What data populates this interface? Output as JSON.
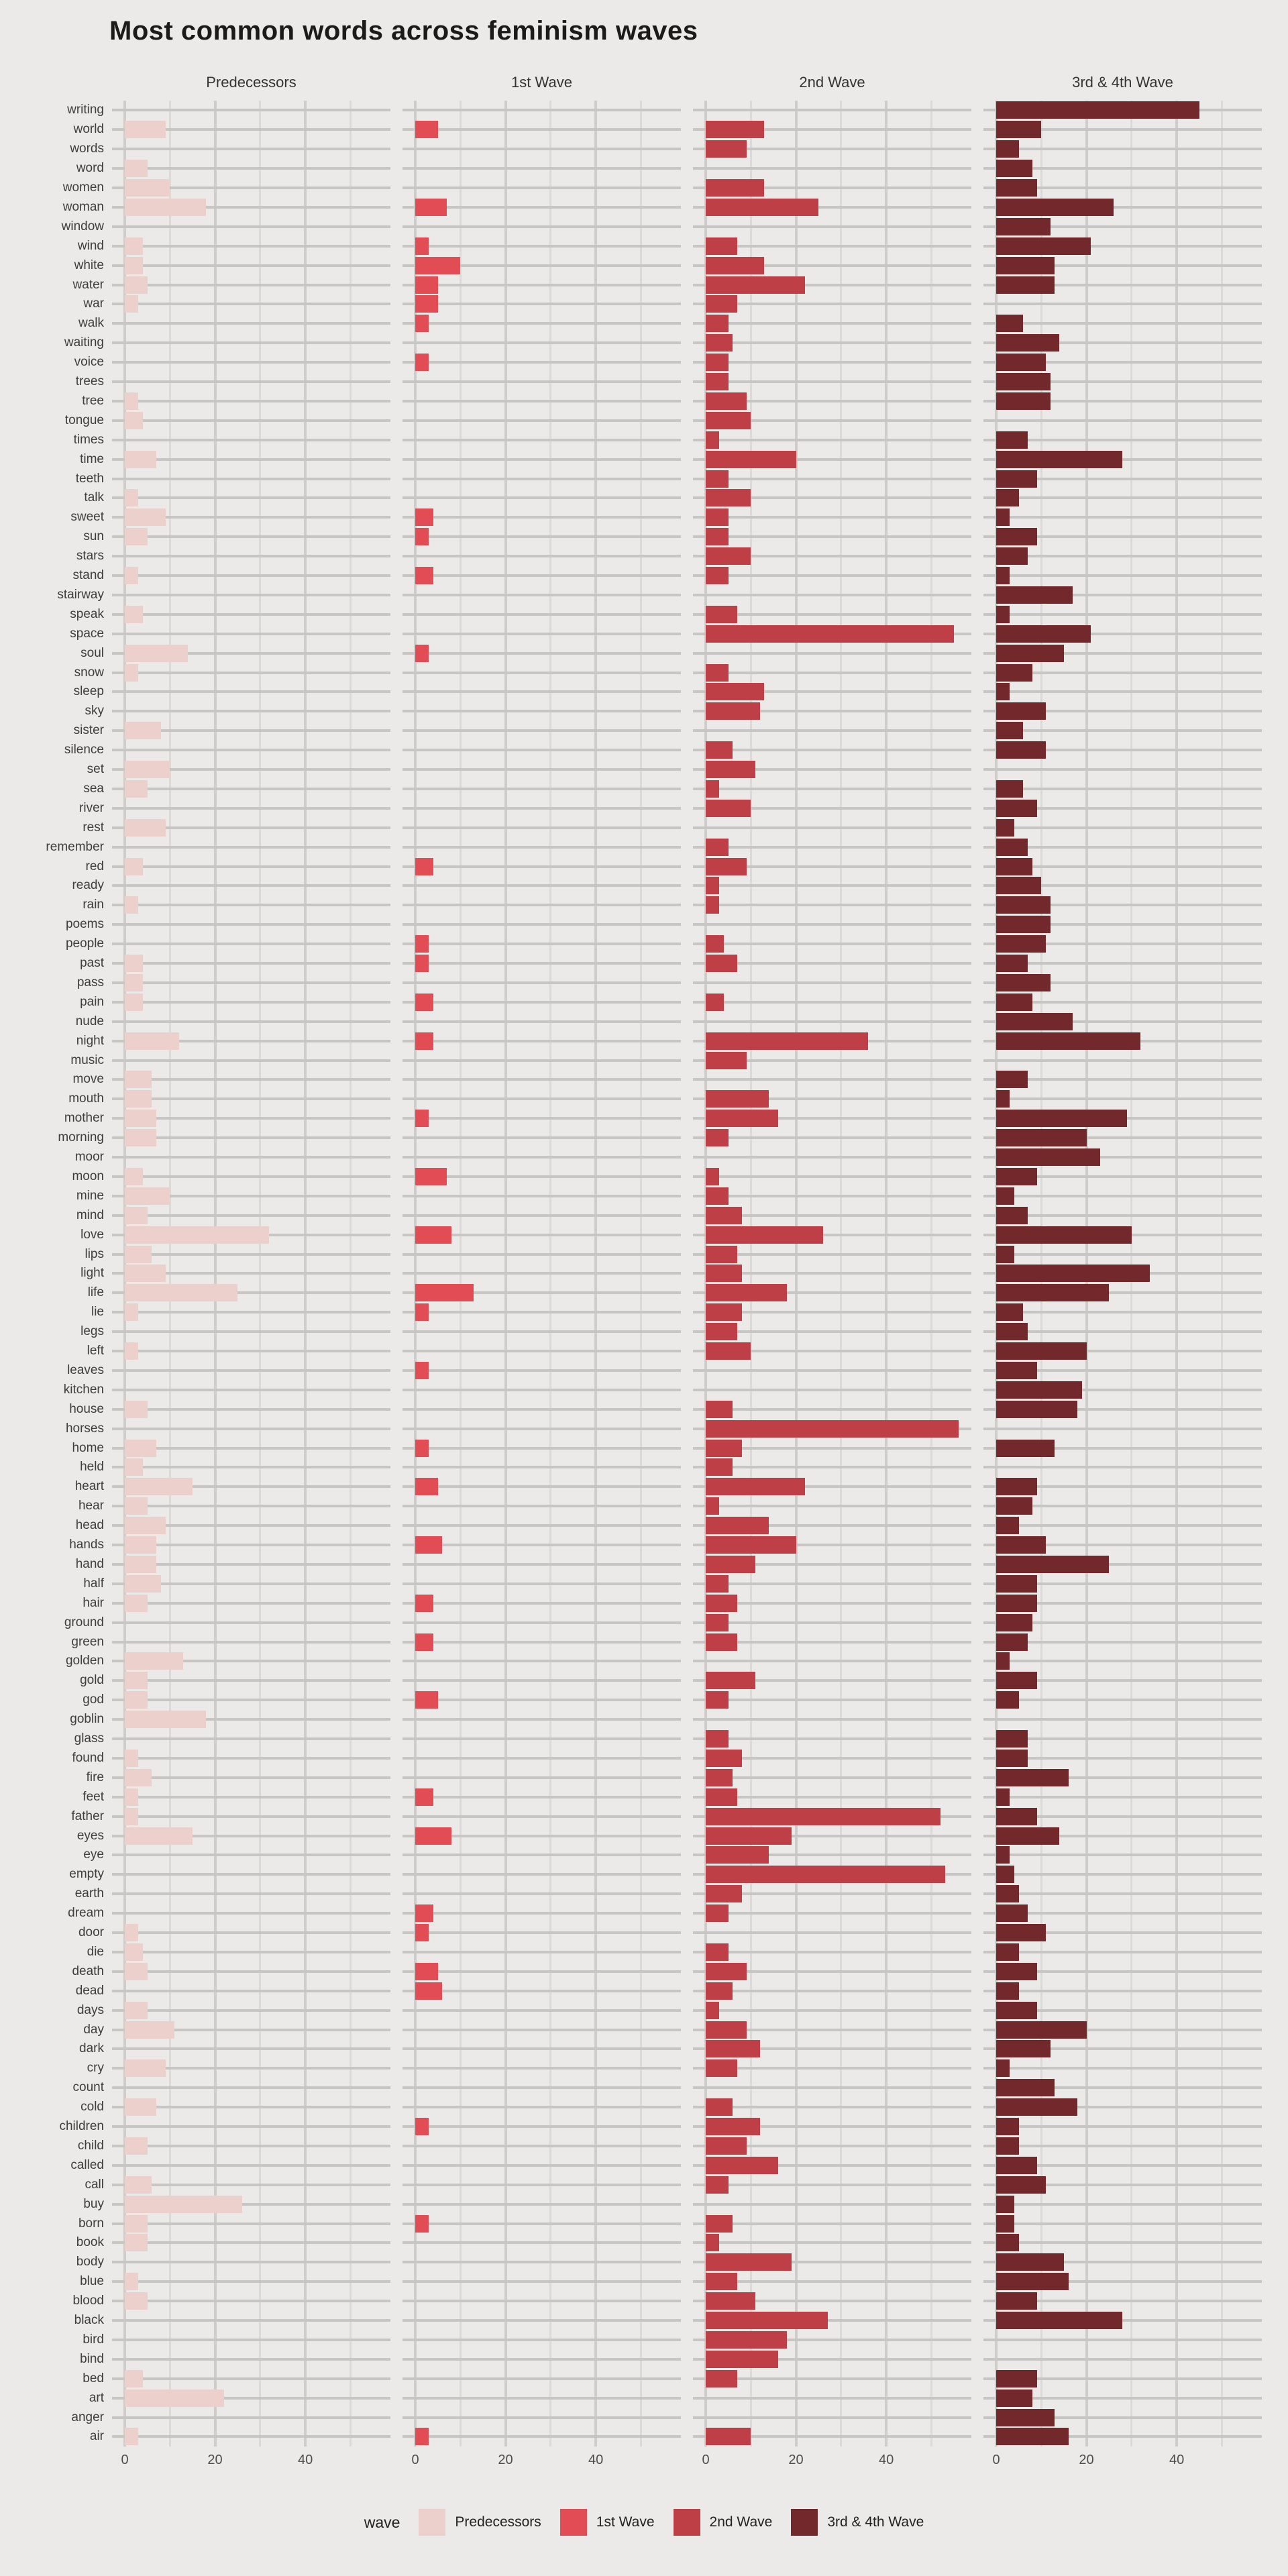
{
  "title": "Most common words across feminism waves",
  "facets": [
    "Predecessors",
    "1st Wave",
    "2nd Wave",
    "3rd & 4th Wave"
  ],
  "legend": {
    "title": "wave",
    "items": [
      {
        "label": "Predecessors",
        "color": "#ECD0CC"
      },
      {
        "label": "1st Wave",
        "color": "#E24C55"
      },
      {
        "label": "2nd Wave",
        "color": "#BE3F45"
      },
      {
        "label": "3rd & 4th Wave",
        "color": "#73282B"
      }
    ]
  },
  "axis": {
    "ticks": [
      0,
      20,
      40
    ],
    "max": 55
  },
  "chart_data": {
    "type": "bar",
    "orientation": "horizontal",
    "title": "Most common words across feminism waves",
    "xlabel": "",
    "ylabel": "",
    "xlim": [
      0,
      55
    ],
    "grid": true,
    "legend_position": "bottom",
    "facet_titles": [
      "Predecessors",
      "1st Wave",
      "2nd Wave",
      "3rd & 4th Wave"
    ],
    "categories": [
      "writing",
      "world",
      "words",
      "word",
      "women",
      "woman",
      "window",
      "wind",
      "white",
      "water",
      "war",
      "walk",
      "waiting",
      "voice",
      "trees",
      "tree",
      "tongue",
      "times",
      "time",
      "teeth",
      "talk",
      "sweet",
      "sun",
      "stars",
      "stand",
      "stairway",
      "speak",
      "space",
      "soul",
      "snow",
      "sleep",
      "sky",
      "sister",
      "silence",
      "set",
      "sea",
      "river",
      "rest",
      "remember",
      "red",
      "ready",
      "rain",
      "poems",
      "people",
      "past",
      "pass",
      "pain",
      "nude",
      "night",
      "music",
      "move",
      "mouth",
      "mother",
      "morning",
      "moor",
      "moon",
      "mine",
      "mind",
      "love",
      "lips",
      "light",
      "life",
      "lie",
      "legs",
      "left",
      "leaves",
      "kitchen",
      "house",
      "horses",
      "home",
      "held",
      "heart",
      "hear",
      "head",
      "hands",
      "hand",
      "half",
      "hair",
      "ground",
      "green",
      "golden",
      "gold",
      "god",
      "goblin",
      "glass",
      "found",
      "fire",
      "feet",
      "father",
      "eyes",
      "eye",
      "empty",
      "earth",
      "dream",
      "door",
      "die",
      "death",
      "dead",
      "days",
      "day",
      "dark",
      "cry",
      "count",
      "cold",
      "children",
      "child",
      "called",
      "call",
      "buy",
      "born",
      "book",
      "body",
      "blue",
      "blood",
      "black",
      "bird",
      "bind",
      "bed",
      "art",
      "anger",
      "air"
    ],
    "series": [
      {
        "name": "Predecessors",
        "color": "#ECD0CC",
        "values": [
          0,
          9,
          0,
          5,
          10,
          18,
          0,
          4,
          4,
          5,
          3,
          0,
          0,
          0,
          0,
          3,
          4,
          0,
          7,
          0,
          3,
          9,
          5,
          0,
          3,
          0,
          4,
          0,
          14,
          3,
          0,
          0,
          8,
          0,
          10,
          5,
          0,
          9,
          0,
          4,
          0,
          3,
          0,
          0,
          4,
          4,
          4,
          0,
          12,
          0,
          6,
          6,
          7,
          7,
          0,
          4,
          10,
          5,
          32,
          6,
          9,
          25,
          3,
          0,
          3,
          0,
          0,
          5,
          0,
          7,
          4,
          15,
          5,
          9,
          7,
          7,
          8,
          5,
          0,
          0,
          13,
          5,
          5,
          18,
          0,
          3,
          6,
          3,
          3,
          15,
          0,
          0,
          0,
          0,
          3,
          4,
          5,
          0,
          5,
          11,
          0,
          9,
          0,
          7,
          0,
          5,
          0,
          6,
          26,
          5,
          5,
          0,
          3,
          5,
          0,
          0,
          0,
          4,
          22,
          0,
          3
        ]
      },
      {
        "name": "1st Wave",
        "color": "#E24C55",
        "values": [
          0,
          5,
          0,
          0,
          0,
          7,
          0,
          3,
          10,
          5,
          5,
          3,
          0,
          3,
          0,
          0,
          0,
          0,
          0,
          0,
          0,
          4,
          3,
          0,
          4,
          0,
          0,
          0,
          3,
          0,
          0,
          0,
          0,
          0,
          0,
          0,
          0,
          0,
          0,
          4,
          0,
          0,
          0,
          3,
          3,
          0,
          4,
          0,
          4,
          0,
          0,
          0,
          3,
          0,
          0,
          7,
          0,
          0,
          8,
          0,
          0,
          13,
          3,
          0,
          0,
          3,
          0,
          0,
          0,
          3,
          0,
          5,
          0,
          0,
          6,
          0,
          0,
          4,
          0,
          4,
          0,
          0,
          5,
          0,
          0,
          0,
          0,
          4,
          0,
          8,
          0,
          0,
          0,
          4,
          3,
          0,
          5,
          6,
          0,
          0,
          0,
          0,
          0,
          0,
          3,
          0,
          0,
          0,
          0,
          3,
          0,
          0,
          0,
          0,
          0,
          0,
          0,
          0,
          0,
          0,
          3
        ]
      },
      {
        "name": "2nd Wave",
        "color": "#BE3F45",
        "values": [
          0,
          13,
          9,
          0,
          13,
          25,
          0,
          7,
          13,
          22,
          7,
          5,
          6,
          5,
          5,
          9,
          10,
          3,
          20,
          5,
          10,
          5,
          5,
          10,
          5,
          0,
          7,
          55,
          0,
          5,
          13,
          12,
          0,
          6,
          11,
          3,
          10,
          0,
          5,
          9,
          3,
          3,
          0,
          4,
          7,
          0,
          4,
          0,
          36,
          9,
          0,
          14,
          16,
          5,
          0,
          3,
          5,
          8,
          26,
          7,
          8,
          18,
          8,
          7,
          10,
          0,
          0,
          6,
          56,
          8,
          6,
          22,
          3,
          14,
          20,
          11,
          5,
          7,
          5,
          7,
          0,
          11,
          5,
          0,
          5,
          8,
          6,
          7,
          52,
          19,
          14,
          53,
          8,
          5,
          0,
          5,
          9,
          6,
          3,
          9,
          12,
          7,
          0,
          6,
          12,
          9,
          16,
          5,
          0,
          6,
          3,
          19,
          7,
          11,
          27,
          18,
          16,
          7,
          0,
          0,
          10
        ]
      },
      {
        "name": "3rd & 4th Wave",
        "color": "#73282B",
        "values": [
          45,
          10,
          5,
          8,
          9,
          26,
          12,
          21,
          13,
          13,
          0,
          6,
          14,
          11,
          12,
          12,
          0,
          7,
          28,
          9,
          5,
          3,
          9,
          7,
          3,
          17,
          3,
          21,
          15,
          8,
          3,
          11,
          6,
          11,
          0,
          6,
          9,
          4,
          7,
          8,
          10,
          12,
          12,
          11,
          7,
          12,
          8,
          17,
          32,
          0,
          7,
          3,
          29,
          20,
          23,
          9,
          4,
          7,
          30,
          4,
          34,
          25,
          6,
          7,
          20,
          9,
          19,
          18,
          0,
          13,
          0,
          9,
          8,
          5,
          11,
          25,
          9,
          9,
          8,
          7,
          3,
          9,
          5,
          0,
          7,
          7,
          16,
          3,
          9,
          14,
          3,
          4,
          5,
          7,
          11,
          5,
          9,
          5,
          9,
          20,
          12,
          3,
          13,
          18,
          5,
          5,
          9,
          11,
          4,
          4,
          5,
          15,
          16,
          9,
          28,
          0,
          0,
          9,
          8,
          13,
          16
        ]
      }
    ]
  },
  "layout_note_colors": {
    "background": "#ECEAE8",
    "h_gridline": "#C8C6C3",
    "v_gridline_major": "#CFCDCA",
    "v_gridline_minor": "#DCDAD7"
  }
}
